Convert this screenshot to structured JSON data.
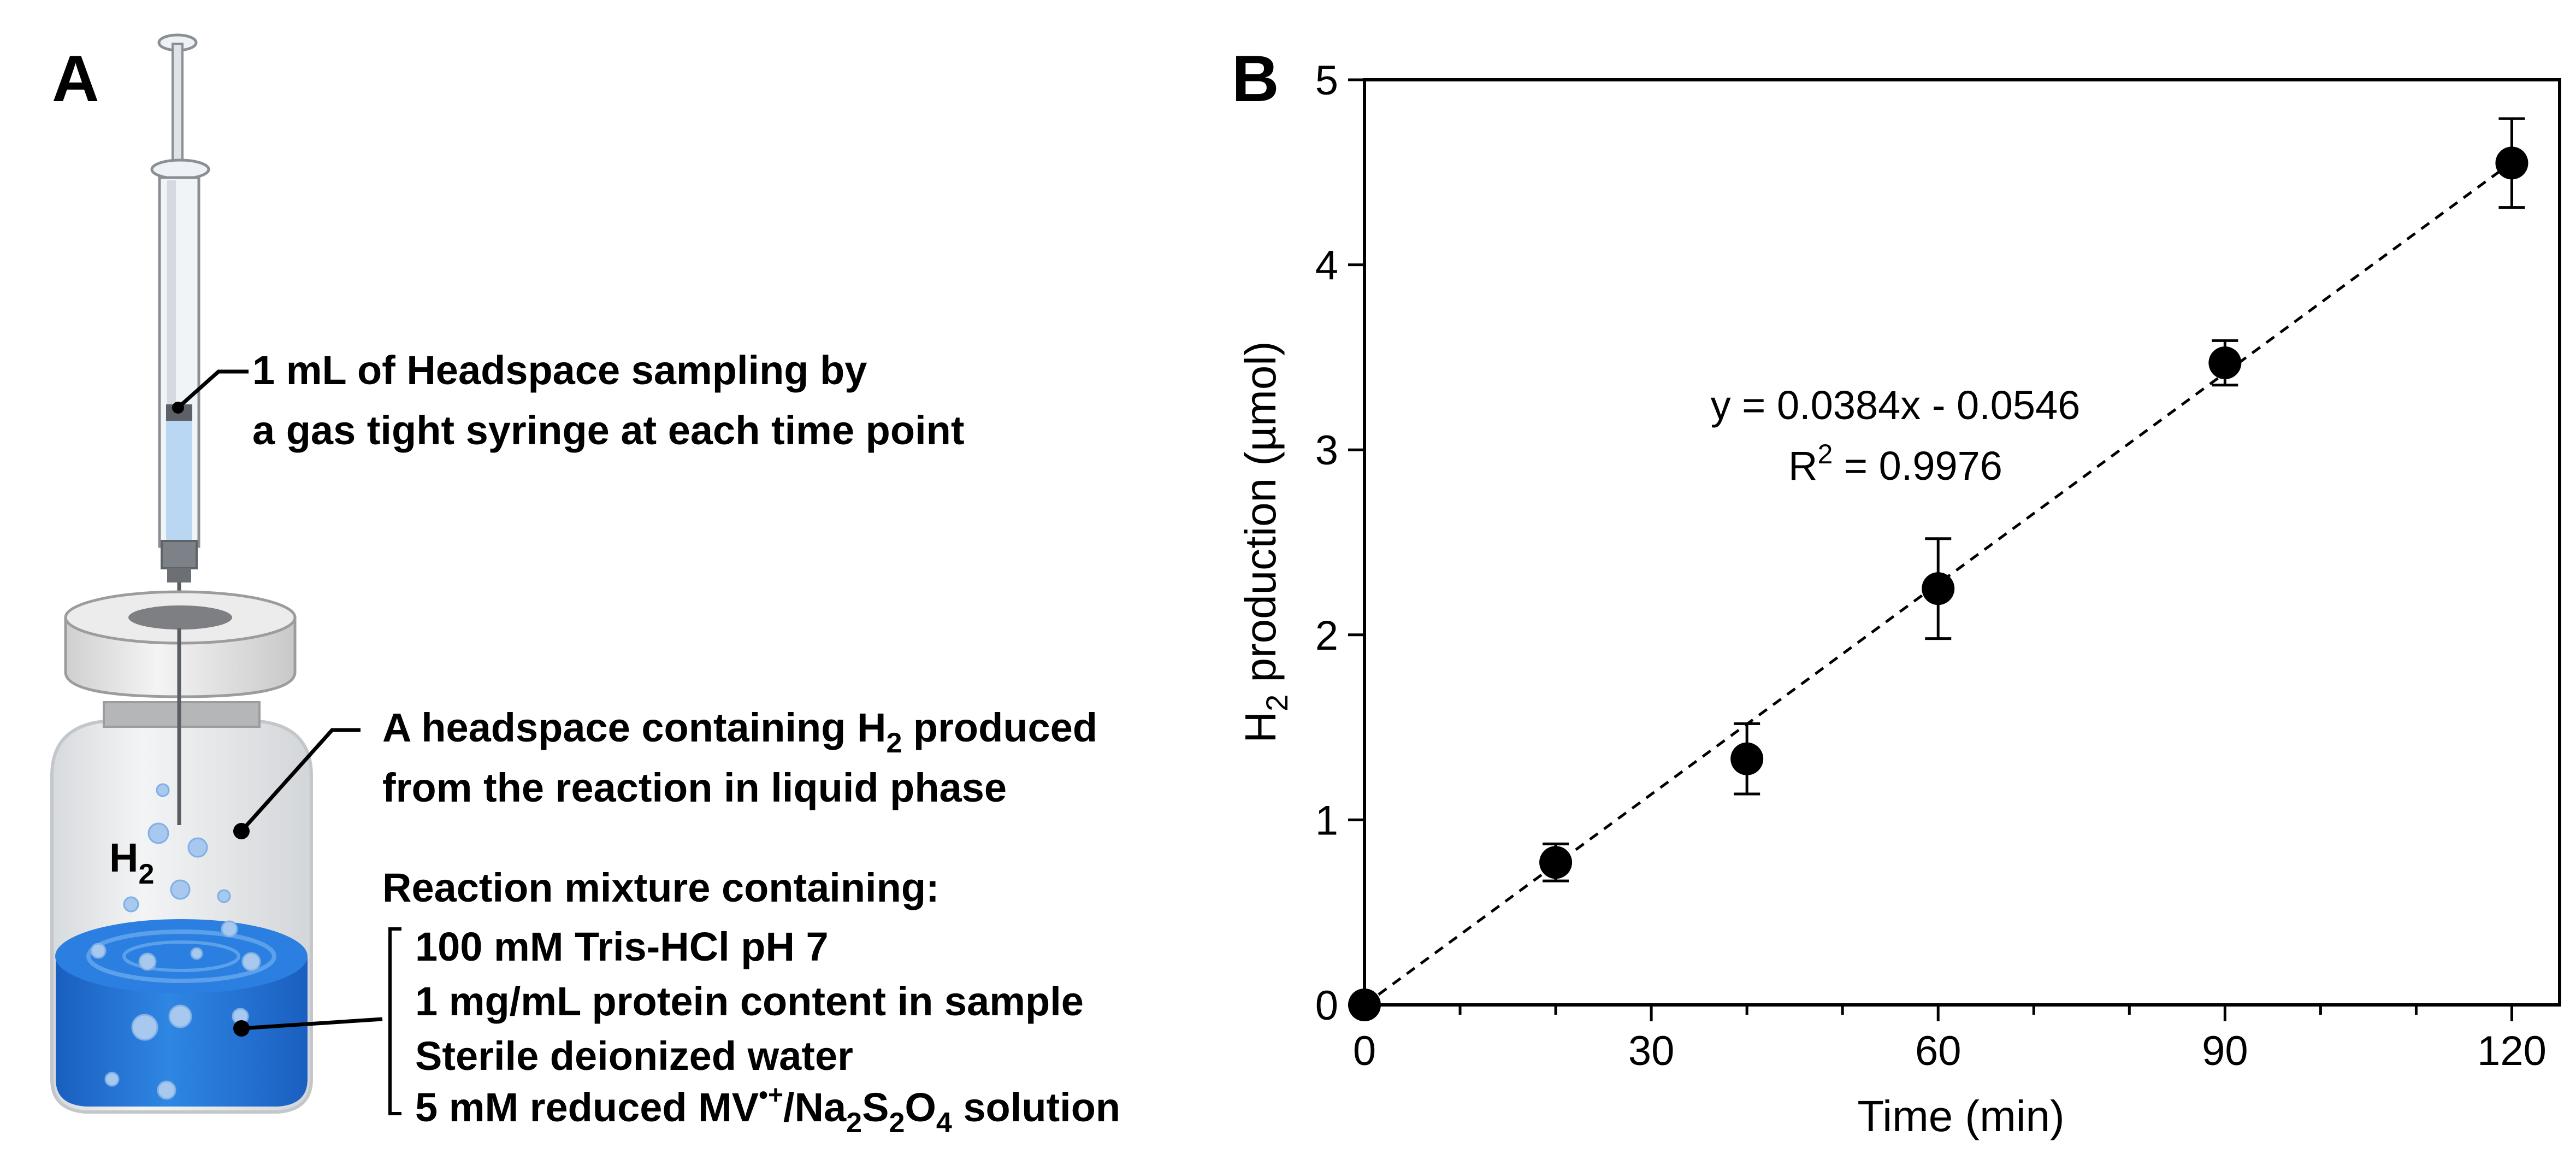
{
  "panel_a": {
    "letter": "A",
    "syringe_label": {
      "line1": "1 mL of Headspace sampling by",
      "line2": "a gas tight syringe at each time point"
    },
    "headspace_label": {
      "line1_pre": "A headspace containing H",
      "line1_sub": "2",
      "line1_post": " produced",
      "line2": "from the reaction in liquid phase"
    },
    "h2_tag": {
      "main": "H",
      "sub": "2"
    },
    "mixture_heading": "Reaction mixture containing:",
    "mixture_items": [
      "100 mM Tris-HCl pH 7",
      "1 mg/mL protein content in sample",
      "Sterile deionized water"
    ],
    "mixture_last": {
      "pre": "5 mM reduced MV",
      "sup": "•+",
      "mid": "/Na",
      "sub1": "2",
      "s": "S",
      "sub2": "2",
      "o": "O",
      "sub3": "4",
      "post": " solution"
    },
    "colors": {
      "liquid": "#1f6fd1",
      "liquid_light": "#5aa0ea",
      "glass": "#e6e8ea",
      "cap": "#e4e4e4",
      "bubble": "#a8c8ee"
    }
  },
  "panel_b": {
    "letter": "B",
    "equation_line1": "y = 0.0384x - 0.0546",
    "r2_pre": "R",
    "r2_sup": "2",
    "r2_post": " = 0.9976"
  },
  "chart_data": {
    "type": "scatter",
    "xlabel": "Time (min)",
    "ylabel_pre": "H",
    "ylabel_sub": "2",
    "ylabel_post": " production (µmol)",
    "xlim": [
      0,
      125
    ],
    "ylim": [
      0,
      5
    ],
    "xticks": [
      0,
      30,
      60,
      90,
      120
    ],
    "yticks": [
      0,
      1,
      2,
      3,
      4,
      5
    ],
    "x": [
      0,
      20,
      40,
      60,
      90,
      120
    ],
    "y": [
      0,
      0.77,
      1.33,
      2.25,
      3.47,
      4.55
    ],
    "yerr": [
      0,
      0.1,
      0.19,
      0.27,
      0.12,
      0.24
    ],
    "trendline": {
      "slope": 0.0384,
      "intercept": -0.0546,
      "style": "dashed"
    },
    "grid": false,
    "legend": "none",
    "marker_color": "#000000"
  }
}
